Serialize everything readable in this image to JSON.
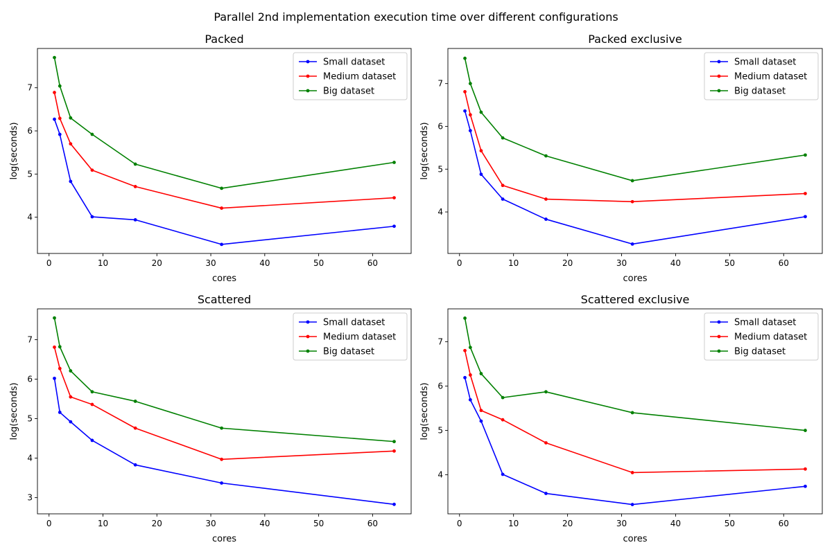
{
  "figure": {
    "suptitle": "Parallel 2nd implementation execution time over different configurations"
  },
  "chart_data": [
    {
      "type": "line",
      "title": "Packed",
      "xlabel": "cores",
      "ylabel": "log(seconds)",
      "x": [
        1,
        2,
        4,
        8,
        16,
        32,
        64
      ],
      "xlim": [
        -2.15,
        67.15
      ],
      "ylim": [
        3.16,
        7.91
      ],
      "xticks": [
        0,
        10,
        20,
        30,
        40,
        50,
        60
      ],
      "yticks": [
        4,
        5,
        6,
        7
      ],
      "legend": "top-right",
      "grid": false,
      "series": [
        {
          "name": "Small dataset",
          "color": "#0000ff",
          "values": [
            6.27,
            5.92,
            4.83,
            4.01,
            3.94,
            3.37,
            3.79
          ]
        },
        {
          "name": "Medium dataset",
          "color": "#ff0000",
          "values": [
            6.89,
            6.29,
            5.7,
            5.09,
            4.71,
            4.21,
            4.45
          ]
        },
        {
          "name": "Big dataset",
          "color": "#008000",
          "values": [
            7.7,
            7.04,
            6.3,
            5.92,
            5.23,
            4.67,
            5.27
          ]
        }
      ]
    },
    {
      "type": "line",
      "title": "Packed exclusive",
      "xlabel": "cores",
      "ylabel": "log(seconds)",
      "x": [
        1,
        2,
        4,
        8,
        16,
        32,
        64
      ],
      "xlim": [
        -2.15,
        67.15
      ],
      "ylim": [
        3.03,
        7.82
      ],
      "xticks": [
        0,
        10,
        20,
        30,
        40,
        50,
        60
      ],
      "yticks": [
        4,
        5,
        6,
        7
      ],
      "legend": "top-right",
      "grid": false,
      "series": [
        {
          "name": "Small dataset",
          "color": "#0000ff",
          "values": [
            6.36,
            5.9,
            4.88,
            4.3,
            3.83,
            3.25,
            3.89
          ]
        },
        {
          "name": "Medium dataset",
          "color": "#ff0000",
          "values": [
            6.81,
            6.27,
            5.43,
            4.62,
            4.3,
            4.24,
            4.43
          ]
        },
        {
          "name": "Big dataset",
          "color": "#008000",
          "values": [
            7.59,
            7.0,
            6.33,
            5.73,
            5.31,
            4.73,
            5.33
          ]
        }
      ]
    },
    {
      "type": "line",
      "title": "Scattered",
      "xlabel": "cores",
      "ylabel": "log(seconds)",
      "x": [
        1,
        2,
        4,
        8,
        16,
        32,
        64
      ],
      "xlim": [
        -2.15,
        67.15
      ],
      "ylim": [
        2.59,
        7.78
      ],
      "xticks": [
        0,
        10,
        20,
        30,
        40,
        50,
        60
      ],
      "yticks": [
        3,
        4,
        5,
        6,
        7
      ],
      "legend": "top-right",
      "grid": false,
      "series": [
        {
          "name": "Small dataset",
          "color": "#0000ff",
          "values": [
            6.02,
            5.16,
            4.92,
            4.45,
            3.83,
            3.37,
            2.83
          ]
        },
        {
          "name": "Medium dataset",
          "color": "#ff0000",
          "values": [
            6.81,
            6.27,
            5.55,
            5.36,
            4.76,
            3.97,
            4.18
          ]
        },
        {
          "name": "Big dataset",
          "color": "#008000",
          "values": [
            7.55,
            6.82,
            6.21,
            5.68,
            5.44,
            4.76,
            4.42
          ]
        }
      ]
    },
    {
      "type": "line",
      "title": "Scattered exclusive",
      "xlabel": "cores",
      "ylabel": "log(seconds)",
      "x": [
        1,
        2,
        4,
        8,
        16,
        32,
        64
      ],
      "xlim": [
        -2.15,
        67.15
      ],
      "ylim": [
        3.12,
        7.74
      ],
      "xticks": [
        0,
        10,
        20,
        30,
        40,
        50,
        60
      ],
      "yticks": [
        4,
        5,
        6,
        7
      ],
      "legend": "top-right",
      "grid": false,
      "series": [
        {
          "name": "Small dataset",
          "color": "#0000ff",
          "values": [
            6.19,
            5.69,
            5.21,
            4.01,
            3.58,
            3.33,
            3.74
          ]
        },
        {
          "name": "Medium dataset",
          "color": "#ff0000",
          "values": [
            6.8,
            6.25,
            5.45,
            5.24,
            4.72,
            4.05,
            4.13
          ]
        },
        {
          "name": "Big dataset",
          "color": "#008000",
          "values": [
            7.53,
            6.87,
            6.28,
            5.74,
            5.87,
            5.4,
            5.0
          ]
        }
      ]
    }
  ]
}
